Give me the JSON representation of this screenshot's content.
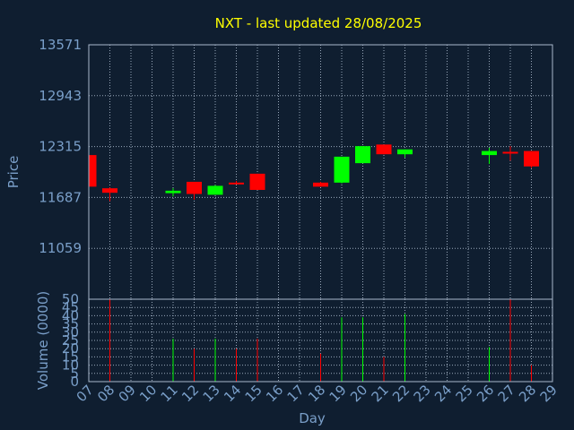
{
  "chart_data": {
    "type": "candlestick",
    "title": "NXT - last updated 28/08/2025",
    "ylabel": "Price",
    "ylabel_volume": "Volume (0000)",
    "xlabel": "Day",
    "price_ticks": [
      "13571",
      "12943",
      "12315",
      "11687",
      "11059"
    ],
    "price_range": [
      10431,
      13571
    ],
    "volume_ticks": [
      "0",
      "5",
      "10",
      "15",
      "20",
      "25",
      "30",
      "35",
      "40",
      "45",
      "50"
    ],
    "volume_range": [
      0,
      50
    ],
    "days": [
      "07",
      "08",
      "09",
      "10",
      "11",
      "12",
      "13",
      "14",
      "15",
      "16",
      "17",
      "18",
      "19",
      "20",
      "21",
      "22",
      "23",
      "24",
      "25",
      "26",
      "27",
      "28",
      "29"
    ],
    "up_color": "#00ff00",
    "down_color": "#ff0000",
    "candles": [
      {
        "day": "07",
        "open": 12210,
        "high": 12210,
        "low": 11820,
        "close": 11820
      },
      {
        "day": "08",
        "open": 11800,
        "high": 11810,
        "low": 11640,
        "close": 11745
      },
      {
        "day": "11",
        "open": 11740,
        "high": 11800,
        "low": 11700,
        "close": 11770
      },
      {
        "day": "12",
        "open": 11880,
        "high": 11880,
        "low": 11660,
        "close": 11730
      },
      {
        "day": "13",
        "open": 11720,
        "high": 11840,
        "low": 11720,
        "close": 11830
      },
      {
        "day": "14",
        "open": 11870,
        "high": 11890,
        "low": 11850,
        "close": 11860
      },
      {
        "day": "15",
        "open": 11980,
        "high": 11980,
        "low": 11780,
        "close": 11780
      },
      {
        "day": "18",
        "open": 11870,
        "high": 11880,
        "low": 11820,
        "close": 11820
      },
      {
        "day": "19",
        "open": 11870,
        "high": 12190,
        "low": 11860,
        "close": 12190
      },
      {
        "day": "20",
        "open": 12110,
        "high": 12320,
        "low": 12110,
        "close": 12320
      },
      {
        "day": "21",
        "open": 12340,
        "high": 12340,
        "low": 12220,
        "close": 12220
      },
      {
        "day": "22",
        "open": 12220,
        "high": 12280,
        "low": 12180,
        "close": 12280
      },
      {
        "day": "26",
        "open": 12210,
        "high": 12300,
        "low": 12100,
        "close": 12260
      },
      {
        "day": "27",
        "open": 12250,
        "high": 12320,
        "low": 12140,
        "close": 12240
      },
      {
        "day": "28",
        "open": 12260,
        "high": 12260,
        "low": 12050,
        "close": 12070
      }
    ],
    "volume": [
      {
        "day": "08",
        "value": 50,
        "direction": "down"
      },
      {
        "day": "11",
        "value": 26,
        "direction": "up"
      },
      {
        "day": "12",
        "value": 20,
        "direction": "down"
      },
      {
        "day": "13",
        "value": 26,
        "direction": "up"
      },
      {
        "day": "14",
        "value": 20,
        "direction": "down"
      },
      {
        "day": "15",
        "value": 26,
        "direction": "down"
      },
      {
        "day": "18",
        "value": 17,
        "direction": "down"
      },
      {
        "day": "19",
        "value": 39,
        "direction": "up"
      },
      {
        "day": "20",
        "value": 39,
        "direction": "up"
      },
      {
        "day": "21",
        "value": 15,
        "direction": "down"
      },
      {
        "day": "22",
        "value": 41,
        "direction": "up"
      },
      {
        "day": "26",
        "value": 21,
        "direction": "up"
      },
      {
        "day": "27",
        "value": 50,
        "direction": "down"
      },
      {
        "day": "28",
        "value": 10,
        "direction": "down"
      }
    ]
  }
}
